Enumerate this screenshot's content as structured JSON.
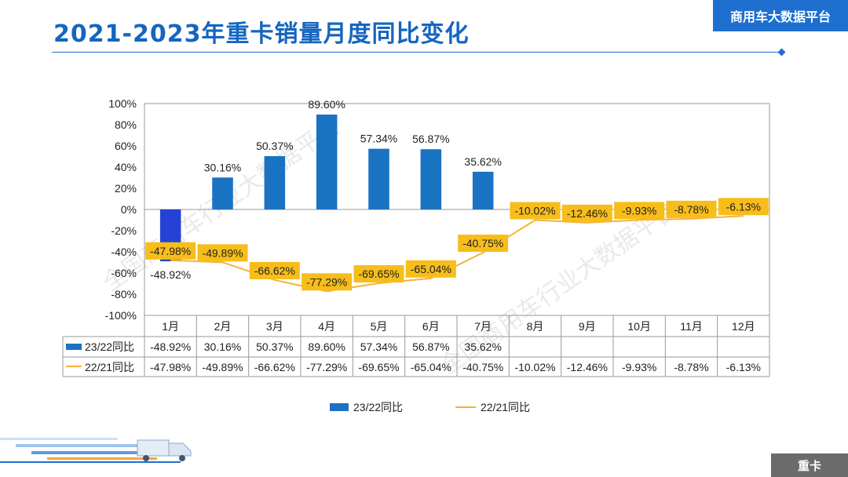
{
  "header": {
    "title": "2021-2023年重卡销量月度同比变化",
    "brand": "商用车大数据平台"
  },
  "footer": {
    "tag": "重卡"
  },
  "watermark": "全国商用车行业大数据平台",
  "colors": {
    "bar": "#1a72c2",
    "bar_negative": "#2442d6",
    "line": "#f5b23a",
    "label_bg": "#f7bd1a",
    "accent": "#1e6fd0"
  },
  "chart_data": {
    "type": "bar",
    "categories": [
      "1月",
      "2月",
      "3月",
      "4月",
      "5月",
      "6月",
      "7月",
      "8月",
      "9月",
      "10月",
      "11月",
      "12月"
    ],
    "ylim": [
      -100,
      100
    ],
    "yticks": [
      "100%",
      "80%",
      "60%",
      "40%",
      "20%",
      "0%",
      "-20%",
      "-40%",
      "-60%",
      "-80%",
      "-100%"
    ],
    "ytick_values": [
      100,
      80,
      60,
      40,
      20,
      0,
      -20,
      -40,
      -60,
      -80,
      -100
    ],
    "series": [
      {
        "name": "23/22同比",
        "type": "bar",
        "values": [
          -48.92,
          30.16,
          50.37,
          89.6,
          57.34,
          56.87,
          35.62,
          null,
          null,
          null,
          null,
          null
        ],
        "labels": [
          "-48.92%",
          "30.16%",
          "50.37%",
          "89.60%",
          "57.34%",
          "56.87%",
          "35.62%",
          "",
          "",
          "",
          "",
          ""
        ]
      },
      {
        "name": "22/21同比",
        "type": "line",
        "values": [
          -47.98,
          -49.89,
          -66.62,
          -77.29,
          -69.65,
          -65.04,
          -40.75,
          -10.02,
          -12.46,
          -9.93,
          -8.78,
          -6.13
        ],
        "labels": [
          "-47.98%",
          "-49.89%",
          "-66.62%",
          "-77.29%",
          "-69.65%",
          "-65.04%",
          "-40.75%",
          "-10.02%",
          "-12.46%",
          "-9.93%",
          "-8.78%",
          "-6.13%"
        ]
      }
    ],
    "legend": [
      "23/22同比",
      "22/21同比"
    ],
    "legend_position": "bottom"
  }
}
